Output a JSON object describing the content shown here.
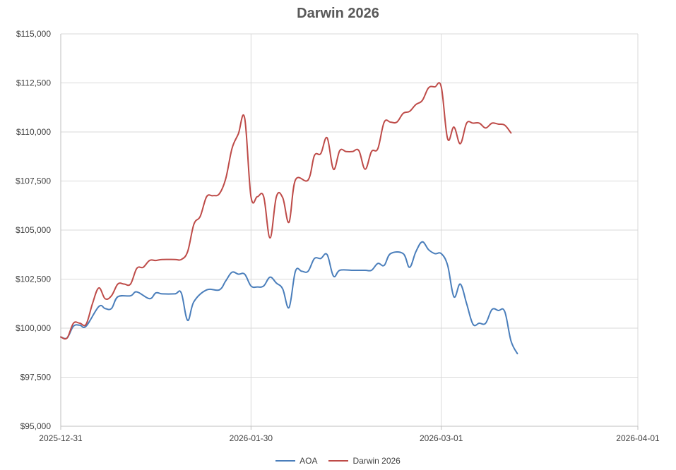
{
  "chart_data": {
    "type": "line",
    "title": "Darwin 2026",
    "xlabel": "",
    "ylabel": "",
    "x_ticks": [
      "2025-12-31",
      "2026-01-30",
      "2026-03-01",
      "2026-04-01"
    ],
    "xlim": [
      "2025-12-31",
      "2026-04-01"
    ],
    "ylim": [
      95000,
      115000
    ],
    "y_ticks": [
      95000,
      97500,
      100000,
      102500,
      105000,
      107500,
      110000,
      112500,
      115000
    ],
    "y_tick_labels": [
      "$95,000",
      "$97,500",
      "$100,000",
      "$102,500",
      "$105,000",
      "$107,500",
      "$110,000",
      "$112,500",
      "$115,000"
    ],
    "grid": true,
    "legend_position": "bottom",
    "series": [
      {
        "name": "AOA",
        "color": "#4a7ebb",
        "points": [
          [
            "2025-12-31",
            99550
          ],
          [
            "2026-01-01",
            99500
          ],
          [
            "2026-01-02",
            100100
          ],
          [
            "2026-01-03",
            100150
          ],
          [
            "2026-01-04",
            100100
          ],
          [
            "2026-01-06",
            101100
          ],
          [
            "2026-01-07",
            101000
          ],
          [
            "2026-01-08",
            101000
          ],
          [
            "2026-01-09",
            101600
          ],
          [
            "2026-01-11",
            101650
          ],
          [
            "2026-01-12",
            101850
          ],
          [
            "2026-01-14",
            101500
          ],
          [
            "2026-01-15",
            101800
          ],
          [
            "2026-01-16",
            101750
          ],
          [
            "2026-01-18",
            101750
          ],
          [
            "2026-01-19",
            101800
          ],
          [
            "2026-01-20",
            100400
          ],
          [
            "2026-01-21",
            101350
          ],
          [
            "2026-01-23",
            101950
          ],
          [
            "2026-01-25",
            101950
          ],
          [
            "2026-01-26",
            102400
          ],
          [
            "2026-01-27",
            102850
          ],
          [
            "2026-01-28",
            102750
          ],
          [
            "2026-01-29",
            102750
          ],
          [
            "2026-01-30",
            102150
          ],
          [
            "2026-01-31",
            102100
          ],
          [
            "2026-02-01",
            102150
          ],
          [
            "2026-02-02",
            102600
          ],
          [
            "2026-02-03",
            102300
          ],
          [
            "2026-02-04",
            102000
          ],
          [
            "2026-02-05",
            101050
          ],
          [
            "2026-02-06",
            102900
          ],
          [
            "2026-02-07",
            102900
          ],
          [
            "2026-02-08",
            102900
          ],
          [
            "2026-02-09",
            103550
          ],
          [
            "2026-02-10",
            103550
          ],
          [
            "2026-02-11",
            103750
          ],
          [
            "2026-02-12",
            102650
          ],
          [
            "2026-02-13",
            102950
          ],
          [
            "2026-02-15",
            102950
          ],
          [
            "2026-02-17",
            102950
          ],
          [
            "2026-02-18",
            102950
          ],
          [
            "2026-02-19",
            103300
          ],
          [
            "2026-02-20",
            103200
          ],
          [
            "2026-02-21",
            103800
          ],
          [
            "2026-02-23",
            103800
          ],
          [
            "2026-02-24",
            103100
          ],
          [
            "2026-02-25",
            103900
          ],
          [
            "2026-02-26",
            104400
          ],
          [
            "2026-02-27",
            104000
          ],
          [
            "2026-02-28",
            103800
          ],
          [
            "2026-03-01",
            103800
          ],
          [
            "2026-03-02",
            103200
          ],
          [
            "2026-03-03",
            101600
          ],
          [
            "2026-03-04",
            102250
          ],
          [
            "2026-03-05",
            101250
          ],
          [
            "2026-03-06",
            100200
          ],
          [
            "2026-03-07",
            100250
          ],
          [
            "2026-03-08",
            100250
          ],
          [
            "2026-03-09",
            100950
          ],
          [
            "2026-03-10",
            100900
          ],
          [
            "2026-03-11",
            100850
          ],
          [
            "2026-03-12",
            99350
          ],
          [
            "2026-03-13",
            98700
          ]
        ]
      },
      {
        "name": "Darwin 2026",
        "color": "#be4b48",
        "points": [
          [
            "2025-12-31",
            99550
          ],
          [
            "2026-01-01",
            99500
          ],
          [
            "2026-01-02",
            100250
          ],
          [
            "2026-01-03",
            100250
          ],
          [
            "2026-01-04",
            100200
          ],
          [
            "2026-01-05",
            101250
          ],
          [
            "2026-01-06",
            102050
          ],
          [
            "2026-01-07",
            101500
          ],
          [
            "2026-01-08",
            101650
          ],
          [
            "2026-01-09",
            102250
          ],
          [
            "2026-01-10",
            102250
          ],
          [
            "2026-01-11",
            102250
          ],
          [
            "2026-01-12",
            103050
          ],
          [
            "2026-01-13",
            103100
          ],
          [
            "2026-01-14",
            103450
          ],
          [
            "2026-01-15",
            103450
          ],
          [
            "2026-01-16",
            103500
          ],
          [
            "2026-01-18",
            103500
          ],
          [
            "2026-01-19",
            103500
          ],
          [
            "2026-01-20",
            103900
          ],
          [
            "2026-01-21",
            105300
          ],
          [
            "2026-01-22",
            105700
          ],
          [
            "2026-01-23",
            106700
          ],
          [
            "2026-01-24",
            106750
          ],
          [
            "2026-01-25",
            106850
          ],
          [
            "2026-01-26",
            107600
          ],
          [
            "2026-01-27",
            109150
          ],
          [
            "2026-01-28",
            109900
          ],
          [
            "2026-01-29",
            110700
          ],
          [
            "2026-01-30",
            106700
          ],
          [
            "2026-01-31",
            106700
          ],
          [
            "2026-02-01",
            106700
          ],
          [
            "2026-02-02",
            104600
          ],
          [
            "2026-02-03",
            106700
          ],
          [
            "2026-02-04",
            106650
          ],
          [
            "2026-02-05",
            105400
          ],
          [
            "2026-02-06",
            107550
          ],
          [
            "2026-02-08",
            107550
          ],
          [
            "2026-02-09",
            108800
          ],
          [
            "2026-02-10",
            108900
          ],
          [
            "2026-02-11",
            109700
          ],
          [
            "2026-02-12",
            108100
          ],
          [
            "2026-02-13",
            109050
          ],
          [
            "2026-02-14",
            109000
          ],
          [
            "2026-02-15",
            109000
          ],
          [
            "2026-02-16",
            109050
          ],
          [
            "2026-02-17",
            108100
          ],
          [
            "2026-02-18",
            109000
          ],
          [
            "2026-02-19",
            109150
          ],
          [
            "2026-02-20",
            110500
          ],
          [
            "2026-02-21",
            110500
          ],
          [
            "2026-02-22",
            110500
          ],
          [
            "2026-02-23",
            110950
          ],
          [
            "2026-02-24",
            111050
          ],
          [
            "2026-02-25",
            111400
          ],
          [
            "2026-02-26",
            111600
          ],
          [
            "2026-02-27",
            112250
          ],
          [
            "2026-02-28",
            112300
          ],
          [
            "2026-03-01",
            112300
          ],
          [
            "2026-03-02",
            109650
          ],
          [
            "2026-03-03",
            110250
          ],
          [
            "2026-03-04",
            109400
          ],
          [
            "2026-03-05",
            110450
          ],
          [
            "2026-03-06",
            110450
          ],
          [
            "2026-03-07",
            110450
          ],
          [
            "2026-03-08",
            110200
          ],
          [
            "2026-03-09",
            110450
          ],
          [
            "2026-03-10",
            110400
          ],
          [
            "2026-03-11",
            110350
          ],
          [
            "2026-03-12",
            109950
          ]
        ]
      }
    ]
  }
}
